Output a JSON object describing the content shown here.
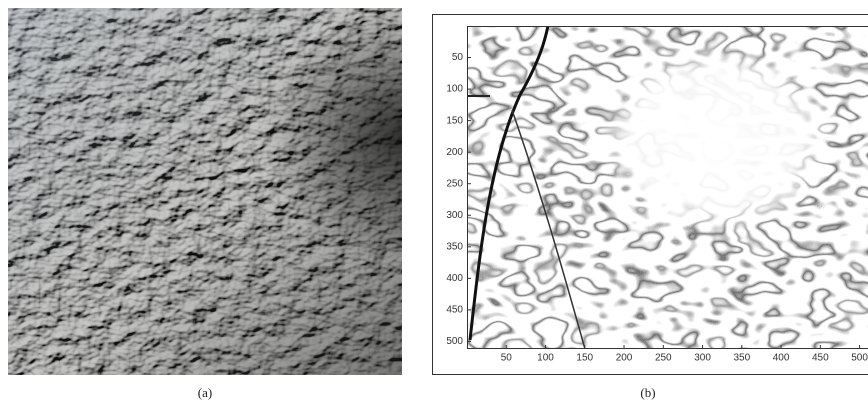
{
  "figure": {
    "panels": [
      {
        "caption": "(a)"
      },
      {
        "caption": "(b)",
        "xlim": [
          0,
          512
        ],
        "ylim": [
          0,
          512
        ],
        "xticks": [
          50,
          100,
          150,
          200,
          250,
          300,
          350,
          400,
          450,
          500
        ],
        "yticks": [
          50,
          100,
          150,
          200,
          250,
          300,
          350,
          400,
          450,
          500
        ]
      }
    ]
  }
}
